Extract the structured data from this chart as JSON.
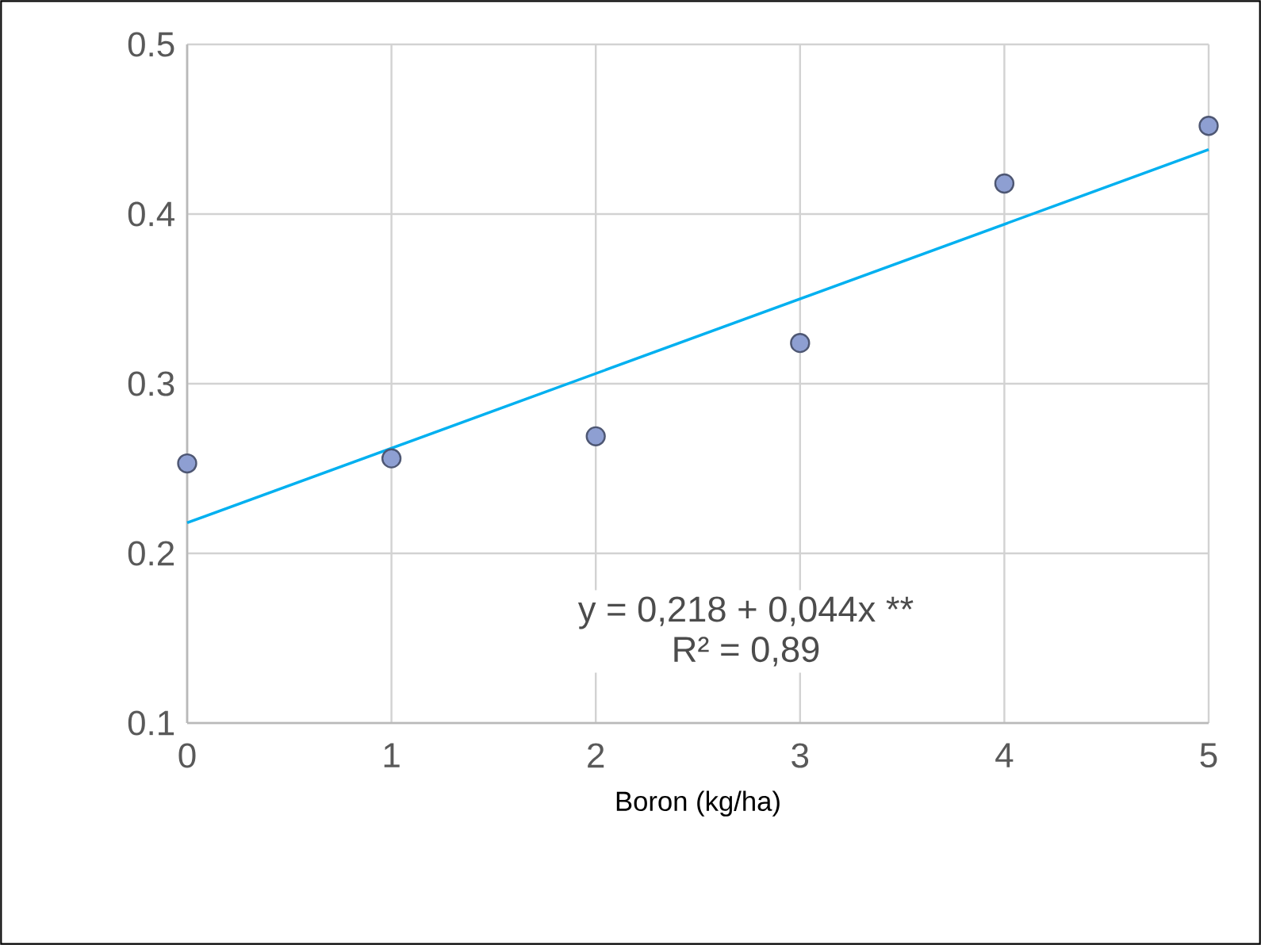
{
  "chart_data": {
    "type": "scatter",
    "xlabel": "Boron (kg/ha)",
    "series": [
      {
        "color": "#8e9fd2",
        "x": [
          0,
          1,
          2,
          3,
          4,
          5
        ],
        "values": [
          0.253,
          0.256,
          0.269,
          0.324,
          0.418,
          0.452
        ],
        "marker": "circle"
      },
      {
        "type": "line",
        "color": "#00b0f0",
        "x": [
          0,
          5
        ],
        "values": [
          0.218,
          0.438
        ],
        "marker": "none",
        "line_style": "solid"
      }
    ],
    "annotations": [
      "y = 0,218 + 0,044x **",
      "R² = 0,89"
    ],
    "xlim": [
      0,
      5
    ],
    "xticks": [
      0,
      1,
      2,
      3,
      4,
      5
    ],
    "ylim": [
      0.1,
      0.5
    ],
    "yticks": [
      {
        "value": 0.1,
        "label": "0.1"
      },
      {
        "value": 0.2,
        "label": "0.2"
      },
      {
        "value": 0.3,
        "label": "0.3"
      },
      {
        "value": 0.4,
        "label": "0.4"
      },
      {
        "value": 0.5,
        "label": "0.5"
      }
    ],
    "grid": true
  }
}
